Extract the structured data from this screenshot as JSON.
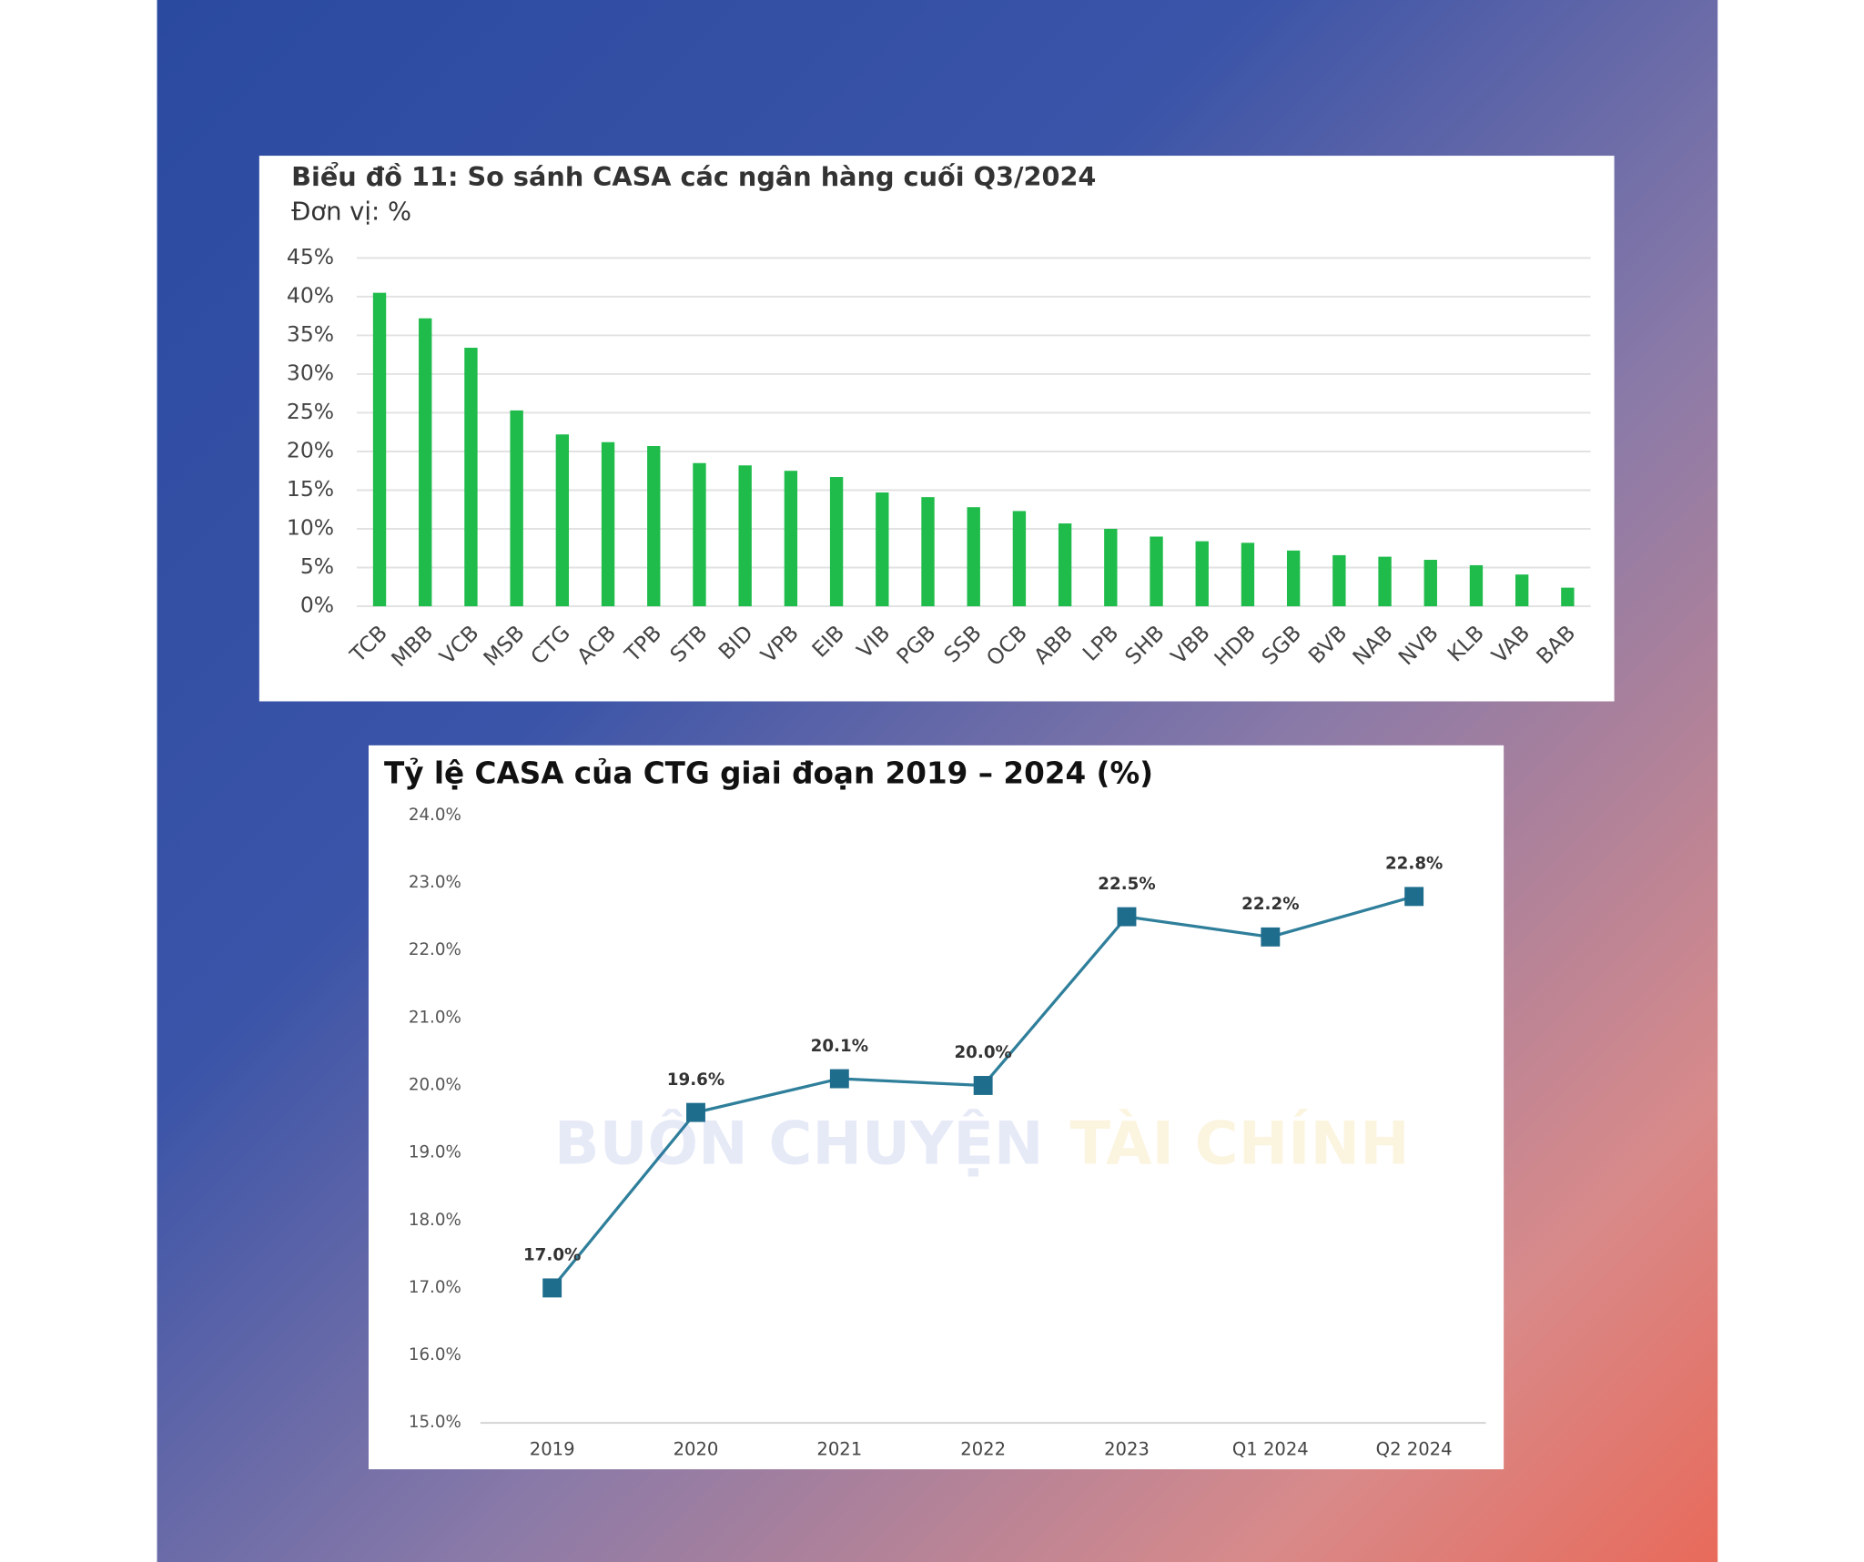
{
  "chart_data": [
    {
      "type": "bar",
      "title": "Biểu đồ 11: So sánh CASA các ngân hàng cuối Q3/2024",
      "subtitle": "Đơn vị: %",
      "categories": [
        "TCB",
        "MBB",
        "VCB",
        "MSB",
        "CTG",
        "ACB",
        "TPB",
        "STB",
        "BID",
        "VPB",
        "EIB",
        "VIB",
        "PGB",
        "SSB",
        "OCB",
        "ABB",
        "LPB",
        "SHB",
        "VBB",
        "HDB",
        "SGB",
        "BVB",
        "NAB",
        "NVB",
        "KLB",
        "VAB",
        "BAB"
      ],
      "values": [
        40.5,
        37.2,
        33.4,
        25.3,
        22.2,
        21.2,
        20.7,
        18.5,
        18.2,
        17.5,
        16.7,
        14.7,
        14.1,
        12.8,
        12.3,
        10.7,
        10.0,
        9.0,
        8.4,
        8.2,
        7.2,
        6.6,
        6.4,
        6.0,
        5.3,
        4.1,
        2.4
      ],
      "color": "#1fbb4b",
      "ylim": [
        0,
        45
      ],
      "yticks": [
        {
          "value": 0,
          "label": "0%"
        },
        {
          "value": 5,
          "label": "5%"
        },
        {
          "value": 10,
          "label": "10%"
        },
        {
          "value": 15,
          "label": "15%"
        },
        {
          "value": 20,
          "label": "20%"
        },
        {
          "value": 25,
          "label": "25%"
        },
        {
          "value": 30,
          "label": "30%"
        },
        {
          "value": 35,
          "label": "35%"
        },
        {
          "value": 40,
          "label": "40%"
        },
        {
          "value": 45,
          "label": "45%"
        }
      ],
      "grid": true
    },
    {
      "type": "line",
      "title": "Tỷ lệ CASA của CTG giai đoạn 2019 – 2024 (%)",
      "categories": [
        "2019",
        "2020",
        "2021",
        "2022",
        "2023",
        "Q1 2024",
        "Q2 2024"
      ],
      "values": [
        17.0,
        19.6,
        20.1,
        20.0,
        22.5,
        22.2,
        22.8
      ],
      "value_labels": [
        "17.0%",
        "19.6%",
        "20.1%",
        "20.0%",
        "22.5%",
        "22.2%",
        "22.8%"
      ],
      "color": "#2f7f9b",
      "marker_color": "#1f6d8d",
      "ylim": [
        15,
        24
      ],
      "yticks": [
        {
          "value": 15,
          "label": "15.0%"
        },
        {
          "value": 16,
          "label": "16.0%"
        },
        {
          "value": 17,
          "label": "17.0%"
        },
        {
          "value": 18,
          "label": "18.0%"
        },
        {
          "value": 19,
          "label": "19.0%"
        },
        {
          "value": 20,
          "label": "20.0%"
        },
        {
          "value": 21,
          "label": "21.0%"
        },
        {
          "value": 22,
          "label": "22.0%"
        },
        {
          "value": 23,
          "label": "23.0%"
        },
        {
          "value": 24,
          "label": "24.0%"
        }
      ],
      "grid": false
    }
  ],
  "watermark": [
    "BUÔN CHUYỆN",
    "TÀI CHÍNH"
  ]
}
